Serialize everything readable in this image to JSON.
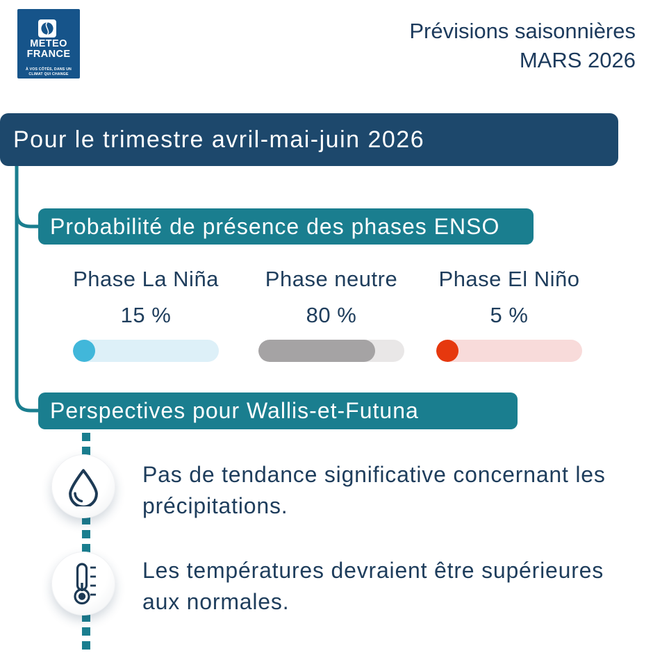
{
  "header": {
    "line1": "Prévisions saisonnières",
    "line2": "MARS 2026"
  },
  "logo": {
    "name1": "METEO",
    "name2": "FRANCE",
    "tagline1": "À VOS CÔTÉS, DANS UN",
    "tagline2": "CLIMAT QUI CHANGE"
  },
  "period_banner": {
    "label": "Pour le trimestre avril-mai-juin 2026"
  },
  "enso": {
    "title": "Probabilité de présence des phases ENSO",
    "phases": [
      {
        "label": "Phase La Niña",
        "value": "15 %",
        "percent": 15,
        "style": "dot",
        "accent": "#41b7da",
        "track": "#ddf0f8"
      },
      {
        "label": "Phase neutre",
        "value": "80 %",
        "percent": 80,
        "style": "fill",
        "accent": "#a5a3a4",
        "track": "#e9e7e7"
      },
      {
        "label": "Phase El Niño",
        "value": "5 %",
        "percent": 5,
        "style": "dot",
        "accent": "#e6380e",
        "track": "#f8dbda"
      }
    ]
  },
  "perspectives": {
    "title": "Perspectives pour Wallis-et-Futuna",
    "items": [
      {
        "icon": "droplet",
        "lines": [
          "Pas de tendance significative concernant les",
          "précipitations."
        ]
      },
      {
        "icon": "thermometer",
        "lines": [
          "Les températures devraient être supérieures",
          "aux normales."
        ]
      }
    ]
  },
  "colors": {
    "navy_banner": "#1d486c",
    "teal": "#1a7e8f",
    "text_navy": "#1e3d5c",
    "logo_blue": "#16548a"
  }
}
